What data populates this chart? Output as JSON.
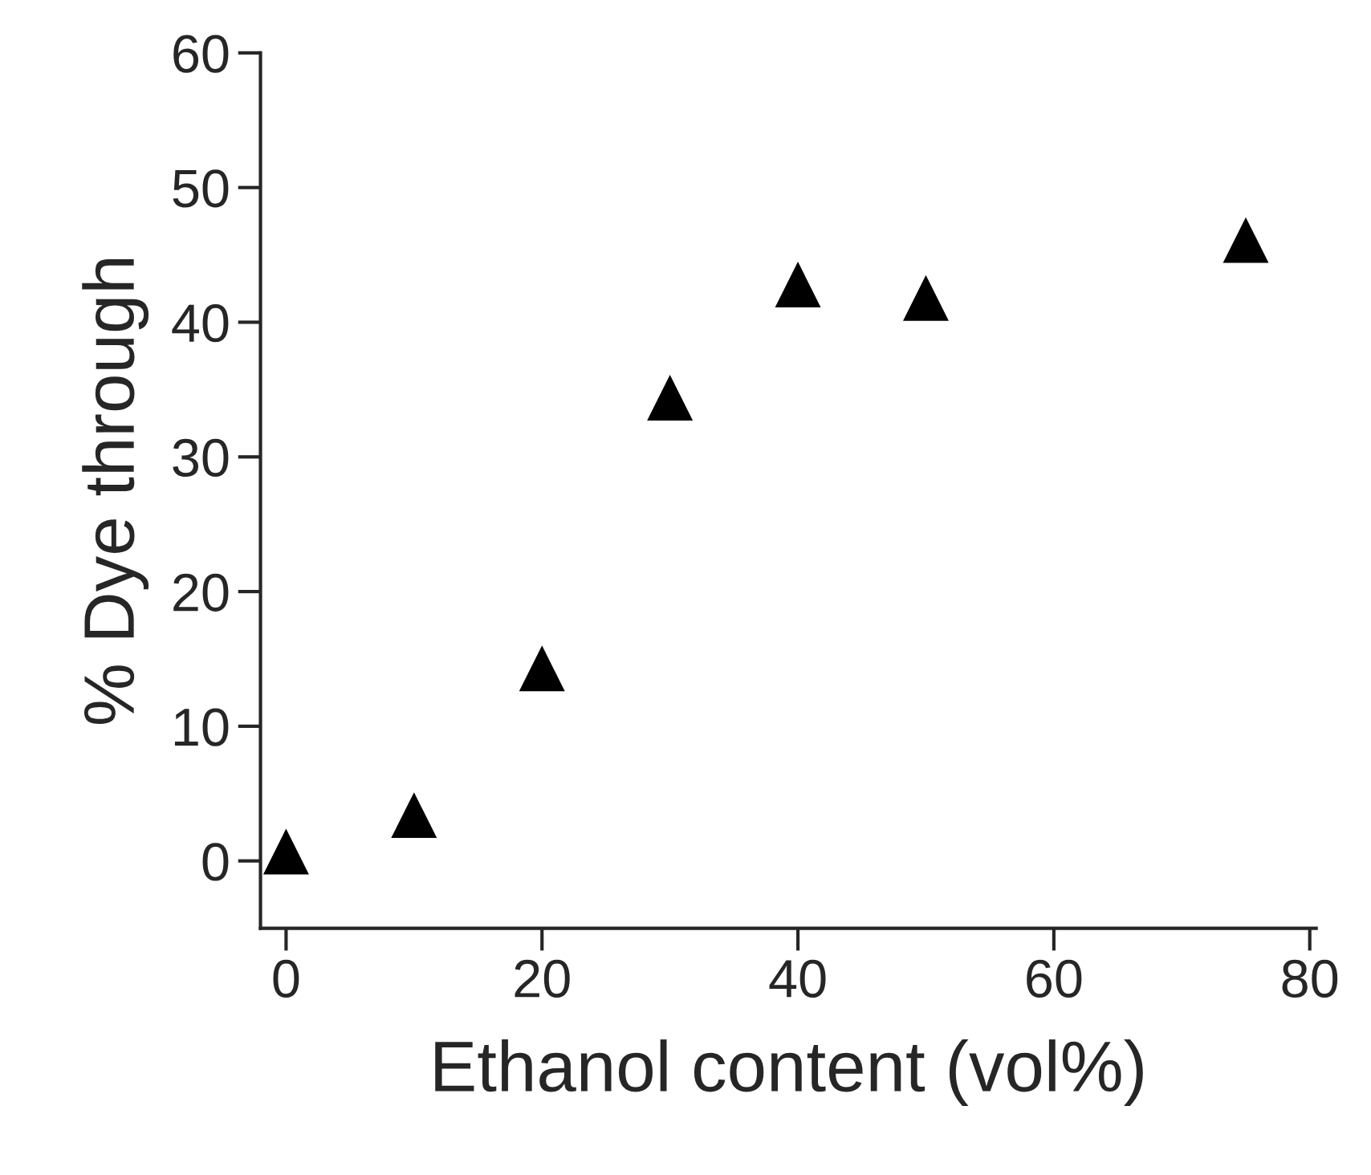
{
  "chart_data": {
    "type": "scatter",
    "xlabel": "Ethanol content (vol%)",
    "ylabel": "% Dye through",
    "series": [
      {
        "color": "#000000",
        "x": [
          0,
          10,
          20,
          30,
          40,
          50,
          75
        ],
        "values": [
          0.7,
          3.4,
          14.3,
          34.4,
          42.8,
          41.8,
          46.1
        ]
      }
    ],
    "marker": "triangle",
    "xlim": [
      -2,
      80.5
    ],
    "ylim": [
      -5,
      60
    ],
    "xticks": [
      0,
      20,
      40,
      60,
      80
    ],
    "yticks": [
      0,
      10,
      20,
      30,
      40,
      50,
      60
    ],
    "grid": false,
    "legend": false
  }
}
